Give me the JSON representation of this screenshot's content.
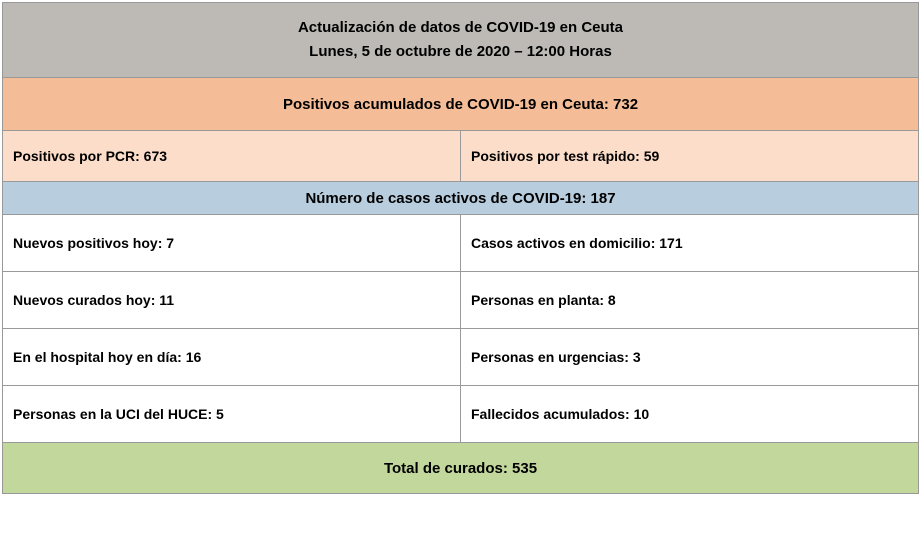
{
  "header": {
    "title": "Actualización de datos de COVID-19 en Ceuta",
    "subtitle": "Lunes, 5 de octubre de 2020 – 12:00 Horas"
  },
  "accumulated": {
    "label": "Positivos acumulados de COVID-19 en Ceuta:  732"
  },
  "tests": {
    "pcr": "Positivos por PCR:  673",
    "rapid": "Positivos por test rápido:  59"
  },
  "active": {
    "label": "Número de casos activos de COVID-19:   187"
  },
  "rows": [
    {
      "left": "Nuevos positivos hoy: 7",
      "right": "Casos activos en domicilio: 171"
    },
    {
      "left": "Nuevos curados hoy:  11",
      "right": "Personas en planta: 8"
    },
    {
      "left": "En el hospital hoy en día: 16",
      "right": "Personas en urgencias: 3"
    },
    {
      "left": "Personas en la UCI del HUCE: 5",
      "right": "Fallecidos acumulados: 10"
    }
  ],
  "total": {
    "label": "Total de curados: 535"
  },
  "colors": {
    "header_bg": "#bdbab5",
    "orange_full": "#f4bd97",
    "orange_light": "#fcddc9",
    "blue": "#b8cdde",
    "white": "#ffffff",
    "green": "#c2d79c",
    "border": "#999999"
  }
}
